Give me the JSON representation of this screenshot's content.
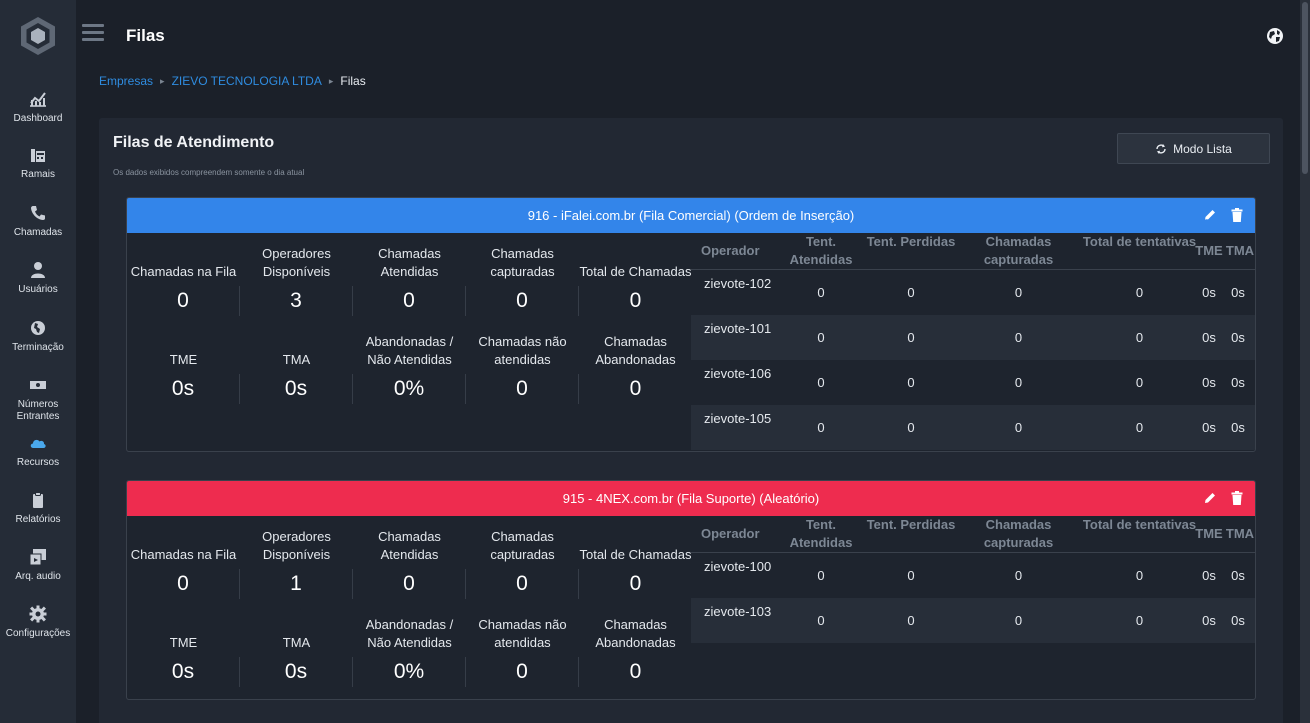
{
  "sidebar": {
    "items": [
      {
        "label": "Dashboard",
        "icon": "chart-line-icon"
      },
      {
        "label": "Ramais",
        "icon": "fax-icon"
      },
      {
        "label": "Chamadas",
        "icon": "phone-icon"
      },
      {
        "label": "Usuários",
        "icon": "user-icon"
      },
      {
        "label": "Terminação",
        "icon": "globe-africa-icon"
      },
      {
        "label": "Números Entrantes",
        "icon": "money-bill-icon"
      },
      {
        "label": "Recursos",
        "icon": "cloud-icon"
      },
      {
        "label": "Relatórios",
        "icon": "clipboard-icon"
      },
      {
        "label": "Arq. audio",
        "icon": "photo-video-icon"
      },
      {
        "label": "Configurações",
        "icon": "gear-icon"
      }
    ]
  },
  "header": {
    "title": "Filas"
  },
  "breadcrumb": {
    "items": [
      "Empresas",
      "ZIEVO TECNOLOGIA LTDA"
    ],
    "current": "Filas"
  },
  "main": {
    "title": "Filas de Atendimento",
    "subtitle": "Os dados exibidos compreendem somente o dia atual",
    "mode_button": "Modo Lista"
  },
  "colors": {
    "queue_blue": "#3385ea",
    "queue_red": "#ee2c4f"
  },
  "operator_headers": {
    "operator": "Operador",
    "answered": "Tent. Atendidas",
    "lost": "Tent. Perdidas",
    "captured": "Chamadas capturadas",
    "total": "Total de tentativas",
    "tme": "TME",
    "tma": "TMA"
  },
  "queues": [
    {
      "title": "916 - iFalei.com.br (Fila Comercial) (Ordem de Inserção)",
      "metrics": [
        {
          "label": "Chamadas na Fila",
          "value": "0"
        },
        {
          "label": "Operadores Disponíveis",
          "value": "3"
        },
        {
          "label": "Chamadas Atendidas",
          "value": "0"
        },
        {
          "label": "Chamadas capturadas",
          "value": "0"
        },
        {
          "label": "Total de Chamadas",
          "value": "0"
        },
        {
          "label": "TME",
          "value": "0s"
        },
        {
          "label": "TMA",
          "value": "0s"
        },
        {
          "label": "Abandonadas / Não Atendidas",
          "value": "0%"
        },
        {
          "label": "Chamadas não atendidas",
          "value": "0"
        },
        {
          "label": "Chamadas Abandonadas",
          "value": "0"
        }
      ],
      "operators": [
        {
          "name": "zievote-102",
          "answered": "0",
          "lost": "0",
          "captured": "0",
          "total": "0",
          "tme": "0s",
          "tma": "0s"
        },
        {
          "name": "zievote-101",
          "answered": "0",
          "lost": "0",
          "captured": "0",
          "total": "0",
          "tme": "0s",
          "tma": "0s"
        },
        {
          "name": "zievote-106",
          "answered": "0",
          "lost": "0",
          "captured": "0",
          "total": "0",
          "tme": "0s",
          "tma": "0s"
        },
        {
          "name": "zievote-105",
          "answered": "0",
          "lost": "0",
          "captured": "0",
          "total": "0",
          "tme": "0s",
          "tma": "0s"
        }
      ]
    },
    {
      "title": "915 - 4NEX.com.br (Fila Suporte) (Aleatório)",
      "metrics": [
        {
          "label": "Chamadas na Fila",
          "value": "0"
        },
        {
          "label": "Operadores Disponíveis",
          "value": "1"
        },
        {
          "label": "Chamadas Atendidas",
          "value": "0"
        },
        {
          "label": "Chamadas capturadas",
          "value": "0"
        },
        {
          "label": "Total de Chamadas",
          "value": "0"
        },
        {
          "label": "TME",
          "value": "0s"
        },
        {
          "label": "TMA",
          "value": "0s"
        },
        {
          "label": "Abandonadas / Não Atendidas",
          "value": "0%"
        },
        {
          "label": "Chamadas não atendidas",
          "value": "0"
        },
        {
          "label": "Chamadas Abandonadas",
          "value": "0"
        }
      ],
      "operators": [
        {
          "name": "zievote-100",
          "answered": "0",
          "lost": "0",
          "captured": "0",
          "total": "0",
          "tme": "0s",
          "tma": "0s"
        },
        {
          "name": "zievote-103",
          "answered": "0",
          "lost": "0",
          "captured": "0",
          "total": "0",
          "tme": "0s",
          "tma": "0s"
        }
      ]
    }
  ]
}
